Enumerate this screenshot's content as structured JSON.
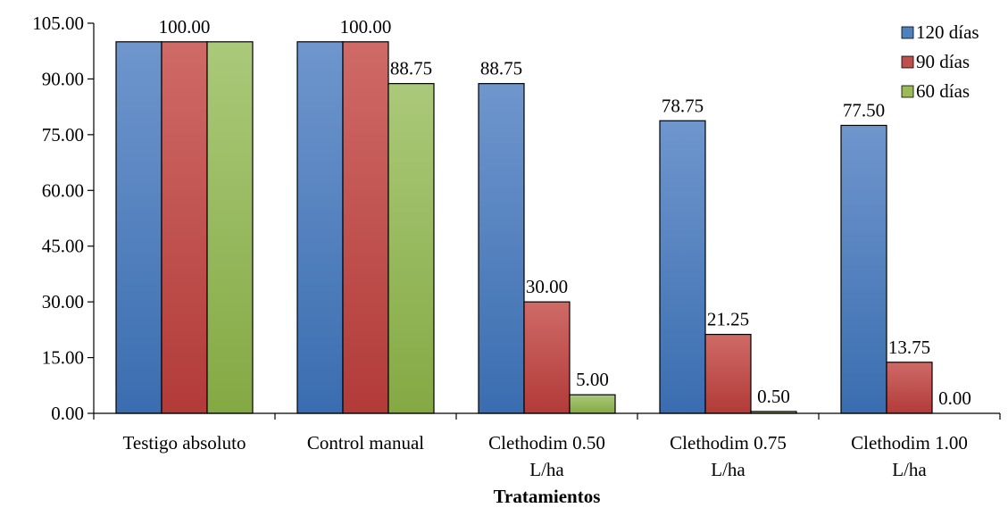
{
  "chart_data": {
    "type": "bar",
    "title": "",
    "xlabel": "Tratamientos",
    "ylabel": "",
    "ylim": [
      0,
      105
    ],
    "yticks": [
      "0.00",
      "15.00",
      "30.00",
      "45.00",
      "60.00",
      "75.00",
      "90.00",
      "105.00"
    ],
    "ytick_values": [
      0,
      15,
      30,
      45,
      60,
      75,
      90,
      105
    ],
    "grid": false,
    "legend_position": "top-right",
    "categories": [
      [
        "Testigo absoluto"
      ],
      [
        "Control manual"
      ],
      [
        "Clethodim 0.50",
        "L/ha"
      ],
      [
        "Clethodim 0.75",
        "L/ha"
      ],
      [
        "Clethodim 1.00",
        "L/ha"
      ]
    ],
    "series": [
      {
        "name": "120 días",
        "color": "#4F81BD",
        "values": [
          100,
          100,
          88.75,
          78.75,
          77.5
        ],
        "labels": [
          "",
          "",
          "88.75",
          "78.75",
          "77.50"
        ]
      },
      {
        "name": "90 días",
        "color": "#C0504D",
        "values": [
          100,
          100,
          30,
          21.25,
          13.75
        ],
        "labels": [
          "100.00",
          "100.00",
          "30.00",
          "21.25",
          "13.75"
        ]
      },
      {
        "name": "60 días",
        "color": "#9BBB59",
        "values": [
          100,
          88.75,
          5,
          0.5,
          0
        ],
        "labels": [
          "",
          "88.75",
          "5.00",
          "0.50",
          "0.00"
        ]
      }
    ]
  }
}
